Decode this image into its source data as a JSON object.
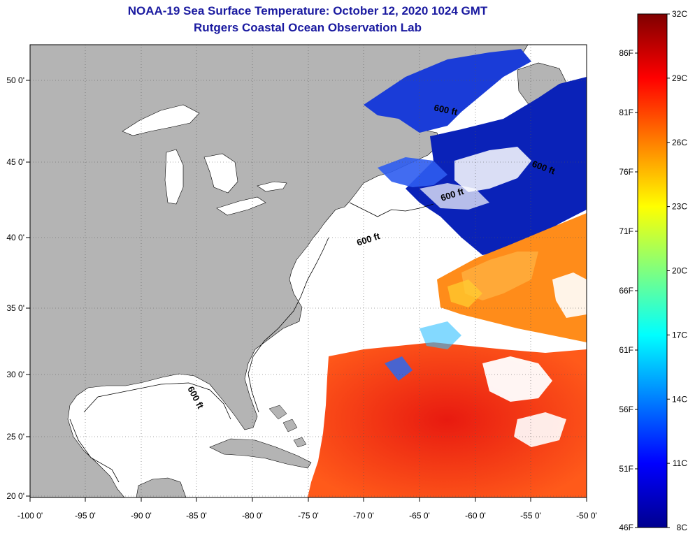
{
  "header": {
    "title_line1": "NOAA-19 Sea Surface Temperature:  October 12, 2020 1024 GMT",
    "title_line2": "Rutgers Coastal Ocean Observation Lab"
  },
  "map": {
    "lat_labels": [
      "50 0'",
      "45 0'",
      "40 0'",
      "35 0'",
      "30 0'",
      "25 0'",
      "20 0'"
    ],
    "lon_labels": [
      "-100 0'",
      "-95 0'",
      "-90 0'",
      "-85 0'",
      "-80 0'",
      "-75 0'",
      "-70 0'",
      "-65 0'",
      "-60 0'",
      "-55 0'",
      "-50 0'"
    ],
    "contour_labels": [
      "600 ft",
      "600 ft",
      "600 ft",
      "600 ft",
      "600 ft"
    ],
    "colors": {
      "land": "#b4b4b4",
      "ocean_nodata": "#ffffff",
      "cold": "#1030d0",
      "warm": "#f02010"
    }
  },
  "colorbar": {
    "celsius": [
      "32C",
      "29C",
      "26C",
      "23C",
      "20C",
      "17C",
      "14C",
      "11C",
      "8C"
    ],
    "fahrenheit": [
      "86F",
      "81F",
      "76F",
      "71F",
      "66F",
      "61F",
      "56F",
      "51F",
      "46F"
    ]
  }
}
